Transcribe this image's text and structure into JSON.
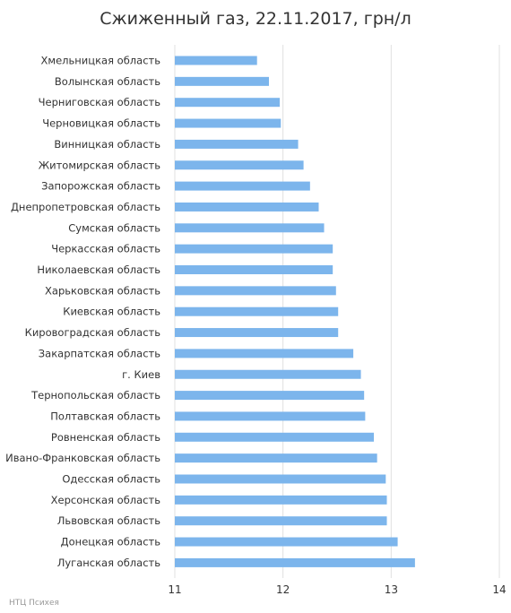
{
  "chart_data": {
    "type": "bar",
    "orientation": "horizontal",
    "title": "Сжиженный газ, 22.11.2017, грн/л",
    "xlim": [
      11,
      14
    ],
    "xticks": [
      11,
      12,
      13,
      14
    ],
    "grid": true,
    "bar_color": "#7cb5ec",
    "categories": [
      "Хмельницкая область",
      "Волынская область",
      "Черниговская область",
      "Черновицкая область",
      "Винницкая область",
      "Житомирская область",
      "Запорожская область",
      "Днепропетровская область",
      "Сумская область",
      "Черкасская область",
      "Николаевская область",
      "Харьковская область",
      "Киевская область",
      "Кировоградская область",
      "Закарпатская область",
      "г. Киев",
      "Тернопольская область",
      "Полтавская область",
      "Ровненская область",
      "Ивано-Франковская область",
      "Одесская область",
      "Херсонская область",
      "Львовская область",
      "Донецкая область",
      "Луганская область"
    ],
    "values": [
      11.76,
      11.87,
      11.97,
      11.98,
      12.14,
      12.19,
      12.25,
      12.33,
      12.38,
      12.46,
      12.46,
      12.49,
      12.51,
      12.51,
      12.65,
      12.72,
      12.75,
      12.76,
      12.84,
      12.87,
      12.95,
      12.96,
      12.96,
      13.06,
      13.22
    ]
  },
  "credit": "НТЦ Психея"
}
